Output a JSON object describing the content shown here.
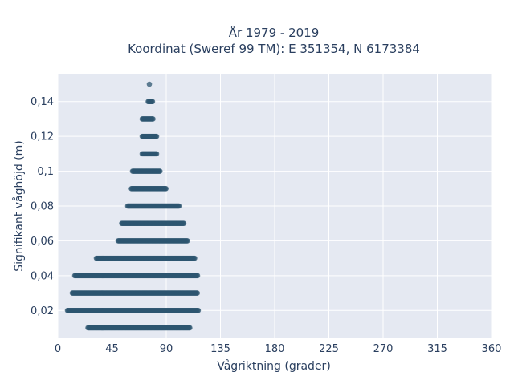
{
  "chart_data": {
    "type": "scatter",
    "title_line1": "År 1979 - 2019",
    "title_line2": "Koordinat (Sweref 99 TM): E 351354, N 6173384",
    "xlabel": "Vågriktning (grader)",
    "ylabel": "Signifikant våghöjd (m)",
    "xlim": [
      0,
      360
    ],
    "ylim": [
      0.004,
      0.156
    ],
    "x_ticks": [
      0,
      45,
      90,
      135,
      180,
      225,
      270,
      315,
      360
    ],
    "x_tick_labels": [
      "0",
      "45",
      "90",
      "135",
      "180",
      "225",
      "270",
      "315",
      "360"
    ],
    "y_ticks": [
      0.02,
      0.04,
      0.06,
      0.08,
      0.1,
      0.12,
      0.14
    ],
    "y_tick_labels": [
      "0,02",
      "0,04",
      "0,06",
      "0,08",
      "0,1",
      "0,12",
      "0,14"
    ],
    "grid": true,
    "marker_color": "#2e5670",
    "plot_background": "#e5e9f2",
    "bands": [
      {
        "y": 0.01,
        "x_min": 25,
        "x_max": 110
      },
      {
        "y": 0.02,
        "x_min": 8,
        "x_max": 117
      },
      {
        "y": 0.03,
        "x_min": 12,
        "x_max": 116
      },
      {
        "y": 0.04,
        "x_min": 14,
        "x_max": 116
      },
      {
        "y": 0.05,
        "x_min": 32,
        "x_max": 114
      },
      {
        "y": 0.06,
        "x_min": 50,
        "x_max": 108
      },
      {
        "y": 0.07,
        "x_min": 53,
        "x_max": 105
      },
      {
        "y": 0.08,
        "x_min": 58,
        "x_max": 101
      },
      {
        "y": 0.09,
        "x_min": 61,
        "x_max": 90
      },
      {
        "y": 0.1,
        "x_min": 62,
        "x_max": 85
      },
      {
        "y": 0.11,
        "x_min": 70,
        "x_max": 82
      },
      {
        "y": 0.12,
        "x_min": 70,
        "x_max": 82
      },
      {
        "y": 0.13,
        "x_min": 70,
        "x_max": 79
      },
      {
        "y": 0.14,
        "x_min": 75,
        "x_max": 79
      },
      {
        "y": 0.15,
        "x_min": 76,
        "x_max": 76
      }
    ]
  }
}
